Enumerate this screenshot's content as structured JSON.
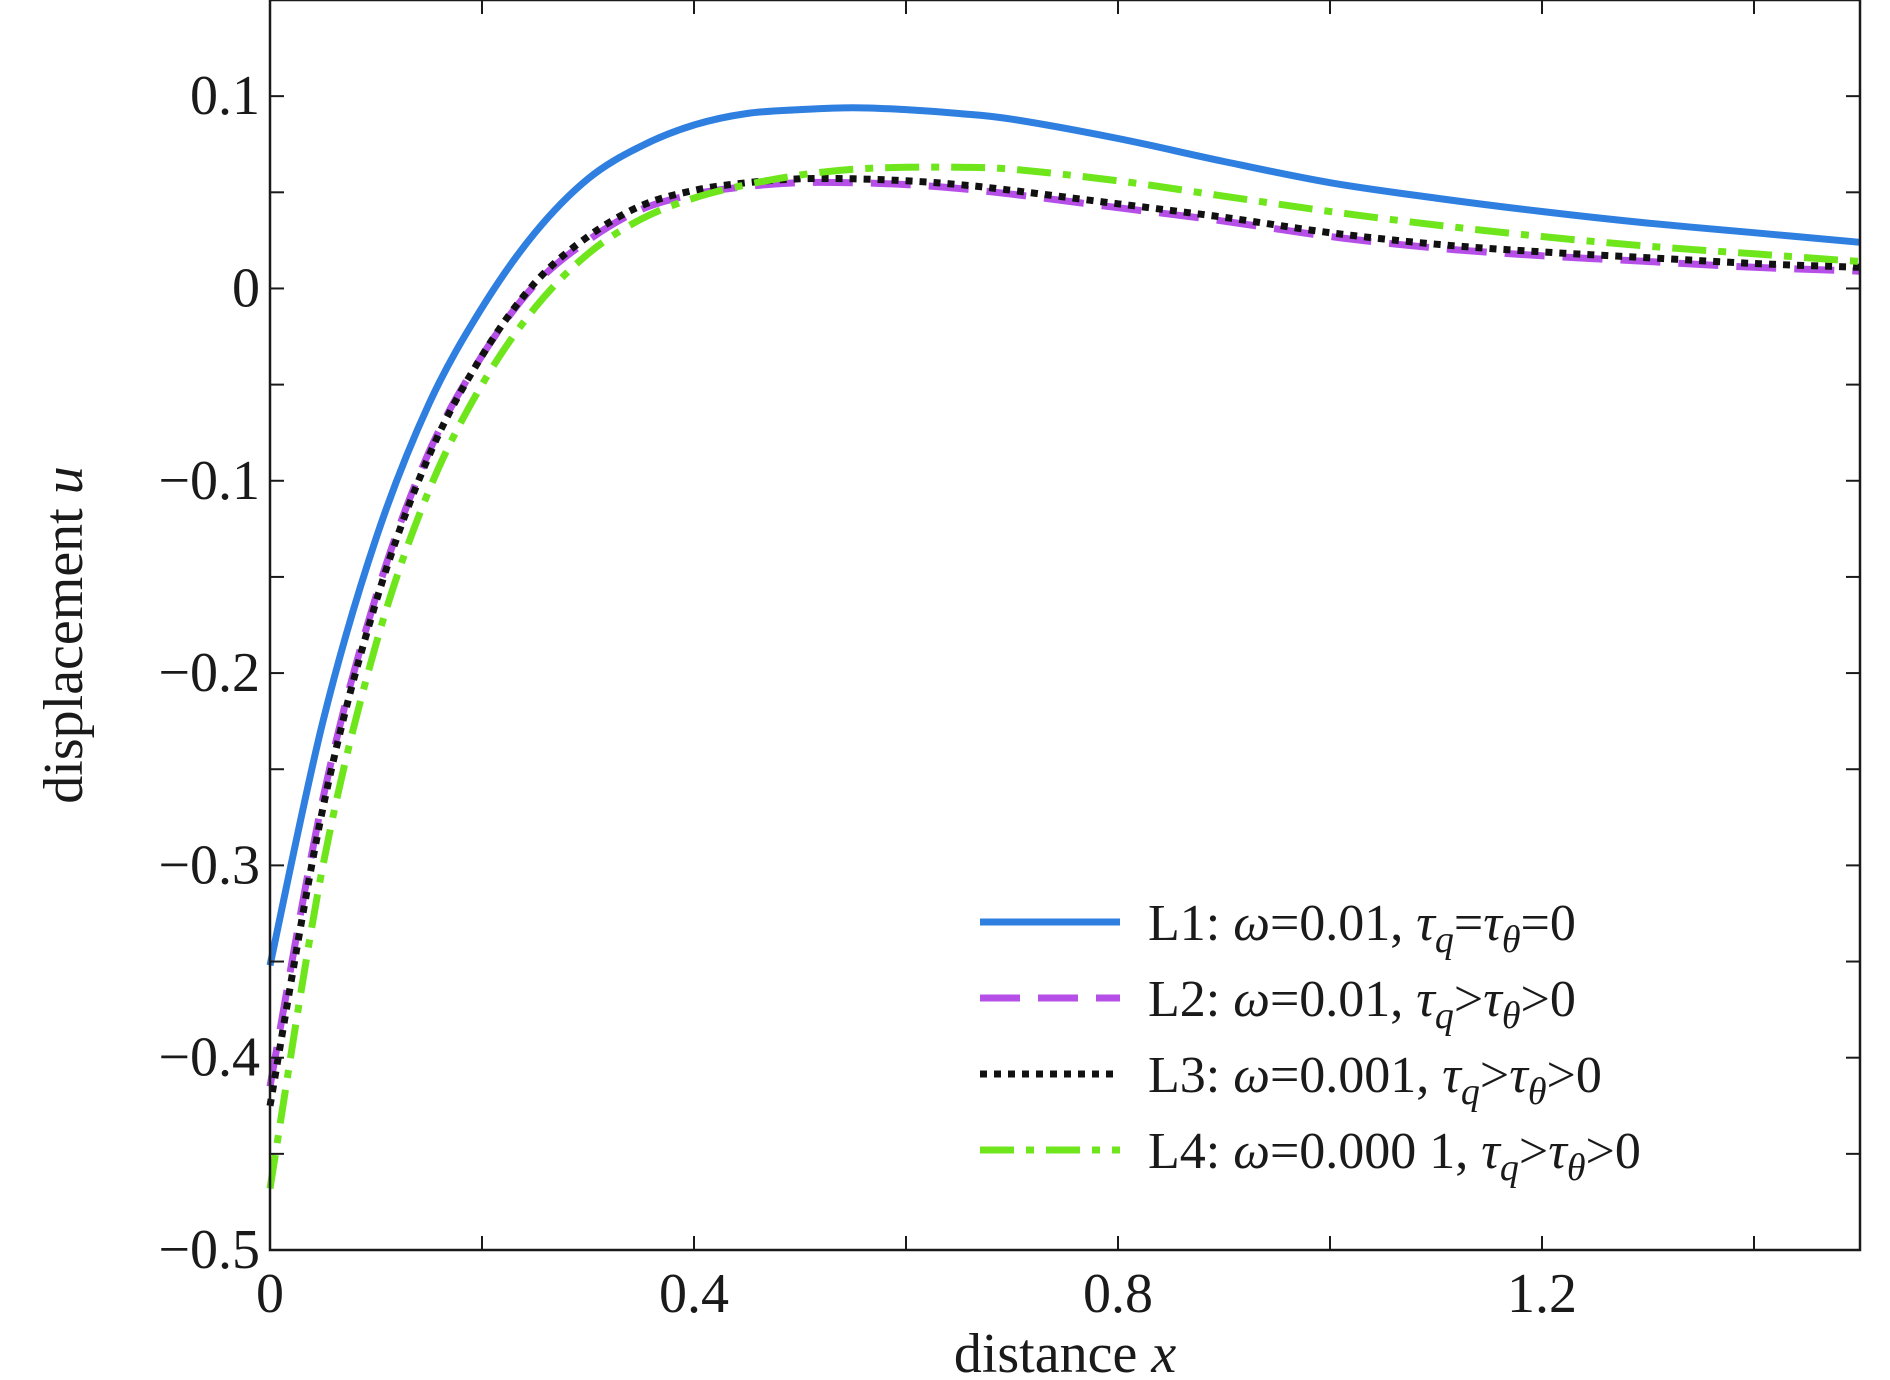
{
  "chart_data": {
    "type": "line",
    "xlabel": "distance x",
    "ylabel": "displacement u",
    "xlabel_parts": [
      "distance ",
      "x"
    ],
    "ylabel_parts": [
      "displacement ",
      "u"
    ],
    "xlim": [
      0,
      1.5
    ],
    "ylim": [
      -0.5,
      0.15
    ],
    "x_ticks": [
      0,
      0.4,
      0.8,
      1.2
    ],
    "x_tick_labels": [
      "0",
      "0.4",
      "0.8",
      "1.2"
    ],
    "y_ticks": [
      -0.5,
      -0.4,
      -0.3,
      -0.2,
      -0.1,
      0,
      0.1
    ],
    "y_tick_labels": [
      "−0.5",
      "−0.4",
      "−0.3",
      "−0.2",
      "−0.1",
      "0",
      "0.1"
    ],
    "grid": false,
    "legend_position": "bottom-right",
    "series": [
      {
        "name": "L1: ω=0.01, τq=τθ=0",
        "label_prefix": "L1: ",
        "omega": "0.01",
        "tau_relation": "=",
        "color": "#2f7fe0",
        "style": "solid",
        "x": [
          0,
          0.05,
          0.1,
          0.15,
          0.2,
          0.25,
          0.3,
          0.35,
          0.4,
          0.45,
          0.5,
          0.55,
          0.6,
          0.65,
          0.7,
          0.8,
          0.9,
          1.0,
          1.1,
          1.2,
          1.3,
          1.4,
          1.5
        ],
        "y": [
          -0.352,
          -0.225,
          -0.13,
          -0.06,
          -0.01,
          0.029,
          0.057,
          0.074,
          0.085,
          0.091,
          0.093,
          0.094,
          0.093,
          0.091,
          0.088,
          0.078,
          0.066,
          0.055,
          0.047,
          0.04,
          0.034,
          0.029,
          0.024
        ]
      },
      {
        "name": "L2: ω=0.01, τq>τθ>0",
        "label_prefix": "L2: ",
        "omega": "0.01",
        "tau_relation": ">",
        "color": "#b64fe8",
        "style": "dashed",
        "x": [
          0,
          0.05,
          0.1,
          0.15,
          0.2,
          0.25,
          0.3,
          0.35,
          0.4,
          0.45,
          0.5,
          0.55,
          0.6,
          0.65,
          0.7,
          0.8,
          0.9,
          1.0,
          1.1,
          1.2,
          1.3,
          1.4,
          1.5
        ],
        "y": [
          -0.415,
          -0.265,
          -0.16,
          -0.085,
          -0.035,
          0.002,
          0.025,
          0.041,
          0.049,
          0.053,
          0.055,
          0.055,
          0.054,
          0.052,
          0.049,
          0.042,
          0.035,
          0.027,
          0.021,
          0.017,
          0.014,
          0.011,
          0.009
        ]
      },
      {
        "name": "L3: ω=0.001, τq>τθ>0",
        "label_prefix": "L3: ",
        "omega": "0.001",
        "tau_relation": ">",
        "color": "#111111",
        "style": "dotted",
        "x": [
          0,
          0.05,
          0.1,
          0.15,
          0.2,
          0.25,
          0.3,
          0.35,
          0.4,
          0.45,
          0.5,
          0.55,
          0.6,
          0.65,
          0.7,
          0.8,
          0.9,
          1.0,
          1.1,
          1.2,
          1.3,
          1.4,
          1.5
        ],
        "y": [
          -0.425,
          -0.27,
          -0.163,
          -0.087,
          -0.035,
          0.003,
          0.027,
          0.043,
          0.051,
          0.055,
          0.057,
          0.057,
          0.056,
          0.054,
          0.051,
          0.044,
          0.037,
          0.029,
          0.023,
          0.019,
          0.016,
          0.013,
          0.011
        ]
      },
      {
        "name": "L4: ω=0.000 1, τq>τθ>0",
        "label_prefix": "L4: ",
        "omega": "0.000 1",
        "tau_relation": ">",
        "color": "#6fe61c",
        "style": "dashdot",
        "x": [
          0,
          0.05,
          0.1,
          0.15,
          0.2,
          0.25,
          0.3,
          0.35,
          0.4,
          0.45,
          0.5,
          0.55,
          0.6,
          0.65,
          0.7,
          0.8,
          0.9,
          1.0,
          1.1,
          1.2,
          1.3,
          1.4,
          1.5
        ],
        "y": [
          -0.468,
          -0.3,
          -0.185,
          -0.105,
          -0.05,
          -0.01,
          0.018,
          0.036,
          0.047,
          0.054,
          0.059,
          0.062,
          0.063,
          0.063,
          0.062,
          0.056,
          0.048,
          0.04,
          0.033,
          0.027,
          0.022,
          0.018,
          0.014
        ]
      }
    ]
  }
}
